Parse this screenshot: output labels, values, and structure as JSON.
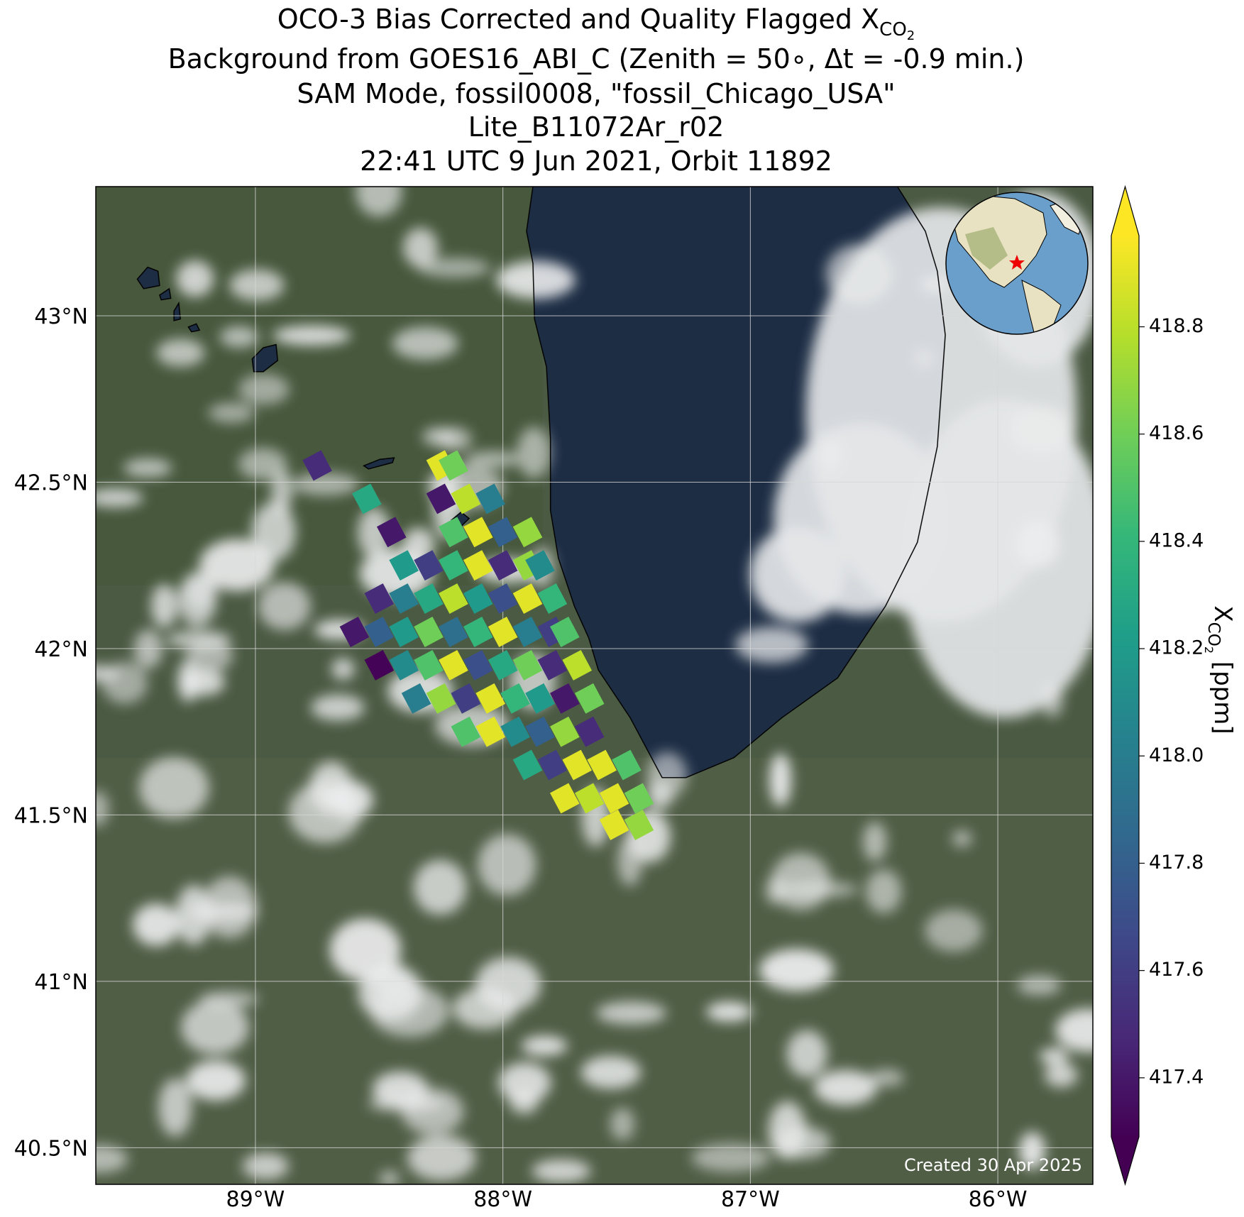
{
  "chart_data": {
    "type": "map",
    "title": "OCO-3 Bias Corrected and Quality Flagged X",
    "title_sub": "CO",
    "title_subsub": "2",
    "subtitles": [
      "Background from GOES16_ABI_C (Zenith = 50∘, Δt = -0.9 min.)",
      "SAM Mode, fossil0008, \"fossil_Chicago_USA\"",
      "Lite_B11072Ar_r02",
      "22:41 UTC 9 Jun 2021, Orbit 11892"
    ],
    "xlim": [
      -89.645,
      -85.616
    ],
    "ylim": [
      40.39,
      43.388
    ],
    "xticks": [
      {
        "value": -89,
        "label": "89°W"
      },
      {
        "value": -88,
        "label": "88°W"
      },
      {
        "value": -87,
        "label": "87°W"
      },
      {
        "value": -86,
        "label": "86°W"
      }
    ],
    "yticks": [
      {
        "value": 40.5,
        "label": "40.5°N"
      },
      {
        "value": 41,
        "label": "41°N"
      },
      {
        "value": 41.5,
        "label": "41.5°N"
      },
      {
        "value": 42,
        "label": "42°N"
      },
      {
        "value": 42.5,
        "label": "42.5°N"
      },
      {
        "value": 43,
        "label": "43°N"
      }
    ],
    "grid": true,
    "footprints": {
      "lon": [
        -88.75,
        -88.25,
        -88.2,
        -88.55,
        -88.25,
        -88.15,
        -88.05,
        -88.45,
        -88.2,
        -88.1,
        -88.0,
        -87.9,
        -88.4,
        -88.3,
        -88.2,
        -88.1,
        -88.0,
        -87.9,
        -87.85,
        -88.5,
        -88.4,
        -88.3,
        -88.2,
        -88.1,
        -88.0,
        -87.9,
        -87.8,
        -88.6,
        -88.5,
        -88.4,
        -88.3,
        -88.2,
        -88.1,
        -88.0,
        -87.9,
        -87.8,
        -87.75,
        -88.5,
        -88.4,
        -88.3,
        -88.2,
        -88.1,
        -88.0,
        -87.9,
        -87.8,
        -87.7,
        -88.35,
        -88.25,
        -88.15,
        -88.05,
        -87.95,
        -87.85,
        -87.75,
        -87.65,
        -88.15,
        -88.05,
        -87.95,
        -87.85,
        -87.75,
        -87.65,
        -87.9,
        -87.8,
        -87.7,
        -87.6,
        -87.5,
        -87.75,
        -87.65,
        -87.55,
        -87.45,
        -87.55,
        -87.45
      ],
      "lat": [
        42.55,
        42.55,
        42.55,
        42.45,
        42.45,
        42.45,
        42.45,
        42.35,
        42.35,
        42.35,
        42.35,
        42.35,
        42.25,
        42.25,
        42.25,
        42.25,
        42.25,
        42.25,
        42.25,
        42.15,
        42.15,
        42.15,
        42.15,
        42.15,
        42.15,
        42.15,
        42.15,
        42.05,
        42.05,
        42.05,
        42.05,
        42.05,
        42.05,
        42.05,
        42.05,
        42.05,
        42.05,
        41.95,
        41.95,
        41.95,
        41.95,
        41.95,
        41.95,
        41.95,
        41.95,
        41.95,
        41.85,
        41.85,
        41.85,
        41.85,
        41.85,
        41.85,
        41.85,
        41.85,
        41.75,
        41.75,
        41.75,
        41.75,
        41.75,
        41.75,
        41.65,
        41.65,
        41.65,
        41.65,
        41.65,
        41.55,
        41.55,
        41.55,
        41.55,
        41.47,
        41.47
      ],
      "values": [
        417.5,
        418.9,
        418.6,
        418.3,
        417.4,
        418.8,
        418.0,
        417.4,
        418.5,
        418.9,
        417.8,
        418.7,
        418.2,
        417.6,
        418.4,
        418.9,
        417.5,
        418.7,
        418.1,
        417.5,
        418.0,
        418.3,
        418.8,
        418.2,
        417.7,
        418.9,
        418.4,
        417.4,
        417.8,
        418.2,
        418.6,
        417.9,
        418.4,
        418.9,
        418.0,
        417.6,
        418.5,
        417.3,
        418.1,
        418.5,
        418.9,
        417.7,
        418.3,
        418.6,
        417.5,
        418.8,
        418.0,
        418.7,
        417.6,
        418.9,
        418.4,
        418.2,
        417.4,
        418.6,
        418.5,
        418.9,
        418.1,
        417.8,
        418.7,
        417.5,
        418.3,
        417.6,
        418.9,
        418.9,
        418.5,
        418.9,
        418.8,
        418.9,
        418.6,
        418.9,
        418.7
      ]
    },
    "colorbar": {
      "label": "X",
      "label_sub": "CO",
      "label_subsub": "2",
      "label_unit": " [ppm]",
      "lim": [
        417.29,
        418.97
      ],
      "ticks": [
        417.4,
        417.6,
        417.8,
        {
          "value": 418,
          "label": "418.0"
        },
        418.2,
        418.4,
        418.6,
        418.8
      ],
      "colormap": [
        "#440154",
        "#482878",
        "#3e4989",
        "#31688e",
        "#26828e",
        "#1f9e89",
        "#35b779",
        "#6ece58",
        "#b5de2b",
        "#fde725"
      ]
    },
    "note": "Created 30 Apr 2025"
  }
}
